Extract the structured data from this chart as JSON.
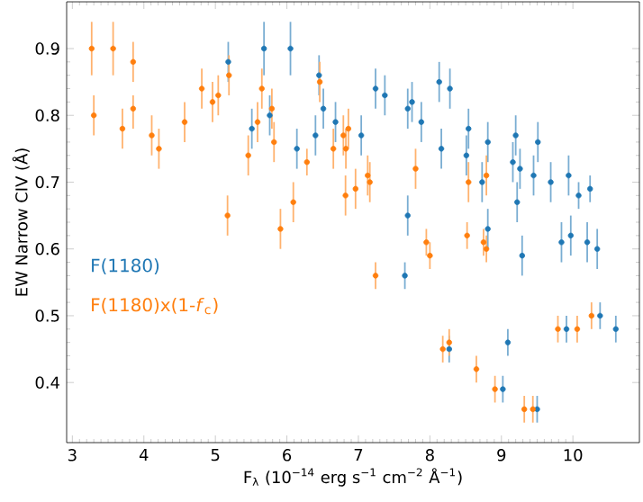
{
  "chart_data": {
    "type": "scatter",
    "xlabel": "F$_{λ}$ (10$^{−14}$ erg s$^{−1}$ cm$^{−2}$ Å$^{−1}$)",
    "ylabel": "EW Narrow CIV (Å)",
    "xlim": [
      2.92,
      10.93
    ],
    "ylim": [
      0.31,
      0.97
    ],
    "xticks": [
      3,
      4,
      5,
      6,
      7,
      8,
      9,
      10
    ],
    "yticks": [
      0.4,
      0.5,
      0.6,
      0.7,
      0.8,
      0.9
    ],
    "marker": "circle",
    "legend": "left",
    "grid": false,
    "series": [
      {
        "name": "F(1180)",
        "color": "#1f77b4",
        "x": [
          5.18,
          5.51,
          5.68,
          5.76,
          6.05,
          6.14,
          6.4,
          6.45,
          6.51,
          6.68,
          7.04,
          7.24,
          7.37,
          7.69,
          7.69,
          7.75,
          7.88,
          8.13,
          8.28,
          8.16,
          8.51,
          8.54,
          8.73,
          8.81,
          8.81,
          9.16,
          9.2,
          9.22,
          9.26,
          9.45,
          9.51,
          9.69,
          9.94,
          10.08,
          10.24,
          9.29,
          9.84,
          9.97,
          10.2,
          10.34,
          7.65,
          8.27,
          9.09,
          9.02,
          9.5,
          9.91,
          10.38,
          10.6
        ],
        "values": [
          0.88,
          0.78,
          0.9,
          0.8,
          0.9,
          0.75,
          0.77,
          0.86,
          0.81,
          0.79,
          0.77,
          0.84,
          0.83,
          0.65,
          0.81,
          0.82,
          0.79,
          0.85,
          0.84,
          0.75,
          0.74,
          0.78,
          0.7,
          0.76,
          0.63,
          0.73,
          0.77,
          0.67,
          0.72,
          0.71,
          0.76,
          0.7,
          0.71,
          0.68,
          0.69,
          0.59,
          0.61,
          0.62,
          0.61,
          0.6,
          0.56,
          0.45,
          0.46,
          0.39,
          0.36,
          0.48,
          0.5,
          0.48
        ],
        "errors": [
          0.03,
          0.03,
          0.04,
          0.03,
          0.04,
          0.03,
          0.03,
          0.03,
          0.03,
          0.03,
          0.03,
          0.03,
          0.03,
          0.03,
          0.03,
          0.03,
          0.03,
          0.03,
          0.03,
          0.03,
          0.03,
          0.03,
          0.03,
          0.03,
          0.03,
          0.03,
          0.03,
          0.03,
          0.03,
          0.03,
          0.03,
          0.03,
          0.03,
          0.02,
          0.02,
          0.03,
          0.03,
          0.03,
          0.03,
          0.03,
          0.02,
          0.02,
          0.02,
          0.02,
          0.02,
          0.02,
          0.02,
          0.02
        ]
      },
      {
        "name": "F(1180)x(1-*f*$_{c}$)",
        "color": "#ff7f0e",
        "x": [
          3.27,
          3.3,
          3.57,
          3.7,
          3.85,
          3.85,
          4.11,
          4.21,
          4.57,
          4.81,
          4.96,
          5.04,
          5.17,
          5.19,
          5.46,
          5.59,
          5.65,
          5.79,
          5.82,
          5.91,
          6.09,
          6.28,
          6.46,
          6.65,
          6.79,
          6.86,
          6.825,
          6.82,
          6.96,
          7.13,
          7.16,
          7.8,
          8.54,
          8.79,
          7.95,
          8.0,
          7.24,
          8.52,
          8.75,
          8.79,
          8.18,
          8.27,
          8.65,
          8.91,
          9.32,
          9.44,
          9.79,
          10.06,
          10.26
        ],
        "values": [
          0.9,
          0.8,
          0.9,
          0.78,
          0.88,
          0.81,
          0.77,
          0.75,
          0.79,
          0.84,
          0.82,
          0.83,
          0.65,
          0.86,
          0.74,
          0.79,
          0.84,
          0.81,
          0.76,
          0.63,
          0.67,
          0.73,
          0.85,
          0.75,
          0.77,
          0.78,
          0.75,
          0.68,
          0.69,
          0.71,
          0.7,
          0.72,
          0.7,
          0.71,
          0.61,
          0.59,
          0.56,
          0.62,
          0.61,
          0.6,
          0.45,
          0.46,
          0.42,
          0.39,
          0.36,
          0.36,
          0.48,
          0.48,
          0.5
        ],
        "errors": [
          0.04,
          0.03,
          0.04,
          0.03,
          0.03,
          [
            0.78,
            0.83
          ],
          0.03,
          0.03,
          0.03,
          0.03,
          0.03,
          0.03,
          0.03,
          0.03,
          0.03,
          0.03,
          0.03,
          0.03,
          0.03,
          0.03,
          0.03,
          0.02,
          0.03,
          0.03,
          0.03,
          0.03,
          0.03,
          0.03,
          0.03,
          0.03,
          0.03,
          0.03,
          0.03,
          0.03,
          0.02,
          0.02,
          0.02,
          0.02,
          0.02,
          0.02,
          0.02,
          0.02,
          0.02,
          0.02,
          0.02,
          0.02,
          0.02,
          0.02,
          0.02
        ]
      }
    ]
  }
}
